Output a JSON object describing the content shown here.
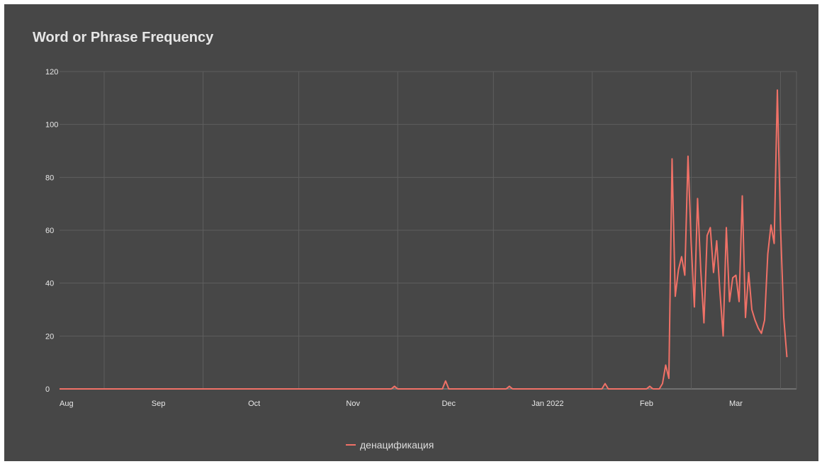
{
  "chart_data": {
    "type": "line",
    "title": "Word or Phrase Frequency",
    "xlabel": "",
    "ylabel": "",
    "x_range": [
      "2021-08-01",
      "2022-03-20"
    ],
    "ylim": [
      0,
      120
    ],
    "yticks": [
      0,
      20,
      40,
      60,
      80,
      100,
      120
    ],
    "xticks": [
      {
        "date": "2021-08-01",
        "label": "Aug"
      },
      {
        "date": "2021-09-01",
        "label": "Sep"
      },
      {
        "date": "2021-10-01",
        "label": "Oct"
      },
      {
        "date": "2021-11-01",
        "label": "Nov"
      },
      {
        "date": "2021-12-01",
        "label": "Dec"
      },
      {
        "date": "2022-01-01",
        "label": "Jan 2022"
      },
      {
        "date": "2022-02-01",
        "label": "Feb"
      },
      {
        "date": "2022-03-01",
        "label": "Mar"
      }
    ],
    "gridlines_x": [
      "2021-08-15",
      "2021-09-15",
      "2021-10-15",
      "2021-11-15",
      "2021-12-15",
      "2022-01-15",
      "2022-02-15",
      "2022-03-15"
    ],
    "grid": true,
    "legend_position": "bottom",
    "series": [
      {
        "name": "денацификация",
        "color": "#f07167",
        "points": [
          [
            "2021-08-01",
            0
          ],
          [
            "2021-11-13",
            0
          ],
          [
            "2021-11-14",
            1
          ],
          [
            "2021-11-15",
            0
          ],
          [
            "2021-11-29",
            0
          ],
          [
            "2021-11-30",
            3
          ],
          [
            "2021-12-01",
            0
          ],
          [
            "2021-12-19",
            0
          ],
          [
            "2021-12-20",
            1
          ],
          [
            "2021-12-21",
            0
          ],
          [
            "2022-01-18",
            0
          ],
          [
            "2022-01-19",
            2
          ],
          [
            "2022-01-20",
            0
          ],
          [
            "2022-02-01",
            0
          ],
          [
            "2022-02-02",
            1
          ],
          [
            "2022-02-03",
            0
          ],
          [
            "2022-02-05",
            0
          ],
          [
            "2022-02-06",
            2
          ],
          [
            "2022-02-07",
            9
          ],
          [
            "2022-02-08",
            4
          ],
          [
            "2022-02-09",
            87
          ],
          [
            "2022-02-10",
            35
          ],
          [
            "2022-02-11",
            45
          ],
          [
            "2022-02-12",
            50
          ],
          [
            "2022-02-13",
            43
          ],
          [
            "2022-02-14",
            88
          ],
          [
            "2022-02-15",
            55
          ],
          [
            "2022-02-16",
            31
          ],
          [
            "2022-02-17",
            72
          ],
          [
            "2022-02-18",
            45
          ],
          [
            "2022-02-19",
            25
          ],
          [
            "2022-02-20",
            58
          ],
          [
            "2022-02-21",
            61
          ],
          [
            "2022-02-22",
            44
          ],
          [
            "2022-02-23",
            56
          ],
          [
            "2022-02-24",
            37
          ],
          [
            "2022-02-25",
            20
          ],
          [
            "2022-02-26",
            61
          ],
          [
            "2022-02-27",
            33
          ],
          [
            "2022-02-28",
            42
          ],
          [
            "2022-03-01",
            43
          ],
          [
            "2022-03-02",
            33
          ],
          [
            "2022-03-03",
            73
          ],
          [
            "2022-03-04",
            27
          ],
          [
            "2022-03-05",
            44
          ],
          [
            "2022-03-06",
            30
          ],
          [
            "2022-03-07",
            26
          ],
          [
            "2022-03-08",
            23
          ],
          [
            "2022-03-09",
            21
          ],
          [
            "2022-03-10",
            26
          ],
          [
            "2022-03-11",
            51
          ],
          [
            "2022-03-12",
            62
          ],
          [
            "2022-03-13",
            55
          ],
          [
            "2022-03-14",
            113
          ],
          [
            "2022-03-15",
            61
          ],
          [
            "2022-03-16",
            27
          ],
          [
            "2022-03-17",
            12
          ]
        ]
      }
    ]
  }
}
